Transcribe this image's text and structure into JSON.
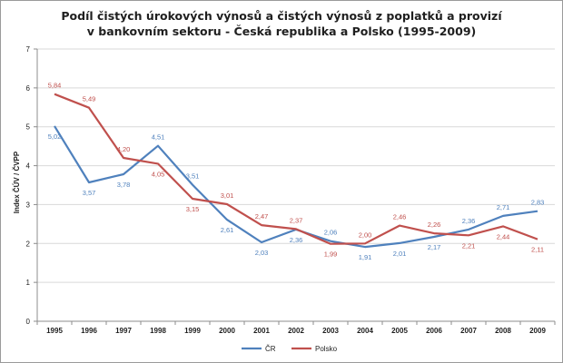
{
  "chart_data": {
    "type": "line",
    "title_line1": "Podíl čistých úrokových výnosů a čistých výnosů z poplatků a provizí",
    "title_line2": "v bankovním sektoru - Česká republika a Polsko (1995-2009)",
    "xlabel": "",
    "ylabel": "Index ČÚV / ČVPP",
    "ylim": [
      0,
      7
    ],
    "yticks": [
      "0",
      "1",
      "2",
      "3",
      "4",
      "5",
      "6",
      "7"
    ],
    "categories": [
      "1995",
      "1996",
      "1997",
      "1998",
      "1999",
      "2000",
      "2001",
      "2002",
      "2003",
      "2004",
      "2005",
      "2006",
      "2007",
      "2008",
      "2009"
    ],
    "grid": true,
    "legend": "bottom",
    "series": [
      {
        "name": "ČR",
        "color": "#4f81bd",
        "values": [
          5.02,
          3.57,
          3.78,
          4.51,
          3.51,
          2.61,
          2.03,
          2.36,
          2.06,
          1.91,
          2.01,
          2.17,
          2.36,
          2.71,
          2.83
        ],
        "labels": [
          "5,02",
          "3,57",
          "3,78",
          "4,51",
          "3,51",
          "2,61",
          "2,03",
          "2,36",
          "2,06",
          "1,91",
          "2,01",
          "2,17",
          "2,36",
          "2,71",
          "2,83"
        ]
      },
      {
        "name": "Polsko",
        "color": "#c0504d",
        "values": [
          5.84,
          5.49,
          4.2,
          4.05,
          3.15,
          3.01,
          2.47,
          2.37,
          1.99,
          2.0,
          2.46,
          2.26,
          2.21,
          2.44,
          2.11
        ],
        "labels": [
          "5,84",
          "5,49",
          "4,20",
          "4,05",
          "3,15",
          "3,01",
          "2,47",
          "2,37",
          "1,99",
          "2,00",
          "2,46",
          "2,26",
          "2,21",
          "2,44",
          "2,11"
        ]
      }
    ]
  }
}
